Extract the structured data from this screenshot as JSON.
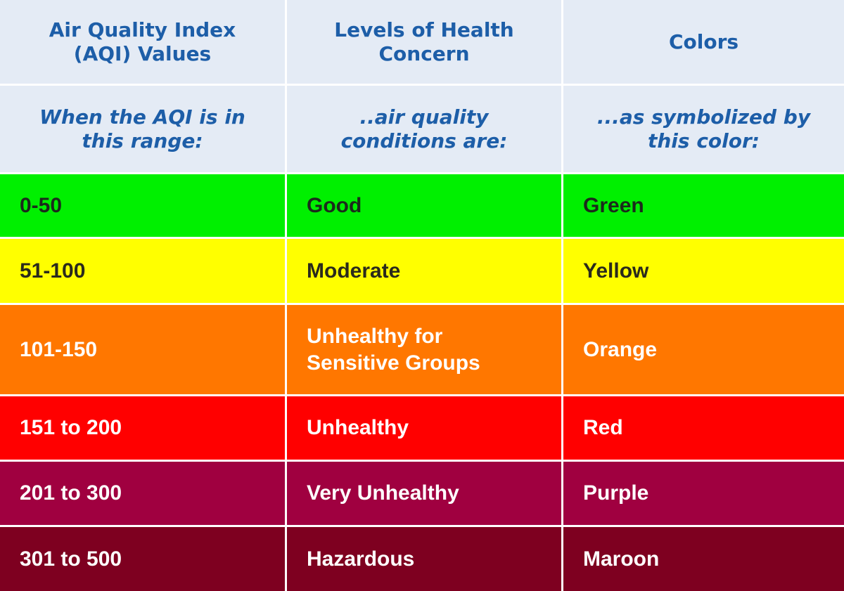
{
  "header": {
    "col_aqi": "Air Quality Index\n(AQI) Values",
    "col_level": "Levels of Health\nConcern",
    "col_color": "Colors"
  },
  "subheader": {
    "col_aqi": "When the AQI is in\nthis range:",
    "col_level": "..air quality\nconditions are:",
    "col_color": "...as symbolized by\nthis color:"
  },
  "rows": [
    {
      "range": "0-50",
      "level": "Good",
      "color": "Green",
      "bg": "#00f000",
      "fg": "#1c2a1c"
    },
    {
      "range": "51-100",
      "level": "Moderate",
      "color": "Yellow",
      "bg": "#ffff00",
      "fg": "#2a2a1c"
    },
    {
      "range": "101-150",
      "level": "Unhealthy for\nSensitive Groups",
      "color": "Orange",
      "bg": "#ff7700",
      "fg": "#ffffff"
    },
    {
      "range": "151 to 200",
      "level": "Unhealthy",
      "color": "Red",
      "bg": "#ff0000",
      "fg": "#ffffff"
    },
    {
      "range": "201 to 300",
      "level": "Very Unhealthy",
      "color": "Purple",
      "bg": "#a00040",
      "fg": "#ffffff"
    },
    {
      "range": "301 to 500",
      "level": "Hazardous",
      "color": "Maroon",
      "bg": "#7e0020",
      "fg": "#ffffff"
    }
  ]
}
